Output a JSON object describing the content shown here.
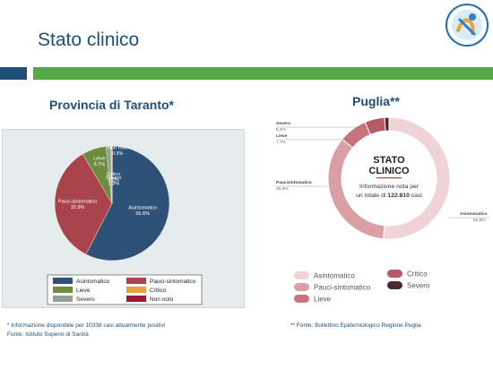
{
  "header": {
    "title": "Stato clinico",
    "logo_text": "U.O. Epidemiologia • Statistica • ASL Taranto"
  },
  "left": {
    "heading": "Provincia di Taranto*"
  },
  "right": {
    "heading": "Puglia**",
    "center_title_line1": "STATO",
    "center_title_line2": "CLINICO",
    "center_text_line1": "Informazione nota per",
    "center_text_line2": "un totale di",
    "center_total": "122.810",
    "center_text_suffix": "casi"
  },
  "footnotes": {
    "left_line1": "* Informazione disponibile per 10338 casi attualmente positivi",
    "left_line2": "Fonte: Istituto Superio di Sanità",
    "right_line1": "** Fonte: Bollettino Epidemiologico Regione Puglia"
  },
  "colors": {
    "brand_blue": "#1f4e79",
    "brand_green": "#56a847"
  },
  "chart_data": [
    {
      "type": "pie",
      "title": "Provincia di Taranto*",
      "categories": [
        "Asintomatico",
        "Pauci-sintomatico",
        "Lieve",
        "Severo",
        "Critico",
        "Non noto"
      ],
      "values": [
        55.6,
        32.9,
        6.7,
        1.3,
        0.2,
        0.3
      ],
      "value_labels": [
        "55.6%",
        "32.9%",
        "6.7%",
        "1.3%",
        "0.2%",
        "0.3%"
      ],
      "colors": [
        "#2e5277",
        "#a9434c",
        "#6c8d3e",
        "#8fa08c",
        "#e7a13a",
        "#9c1a36"
      ],
      "legend_placement": "bottom"
    },
    {
      "type": "pie",
      "title": "Puglia**",
      "categories": [
        "Asintomatico",
        "Pauci-sintomatico",
        "Lieve",
        "Critico",
        "Severo"
      ],
      "values": [
        52.9,
        35.5,
        7.7,
        5.4,
        1.2
      ],
      "value_labels": [
        "52,9%",
        "35,5%",
        "7,7%",
        "5,4%",
        "1,2%"
      ],
      "callout_labels": [
        "Asintomatico",
        "Paucisintomatico",
        "Lieve",
        "Critico",
        "Severo"
      ],
      "colors": [
        "#efd3d6",
        "#d99fa4",
        "#c9737c",
        "#b85965",
        "#4a2a2e"
      ],
      "legend_placement": "bottom"
    }
  ]
}
